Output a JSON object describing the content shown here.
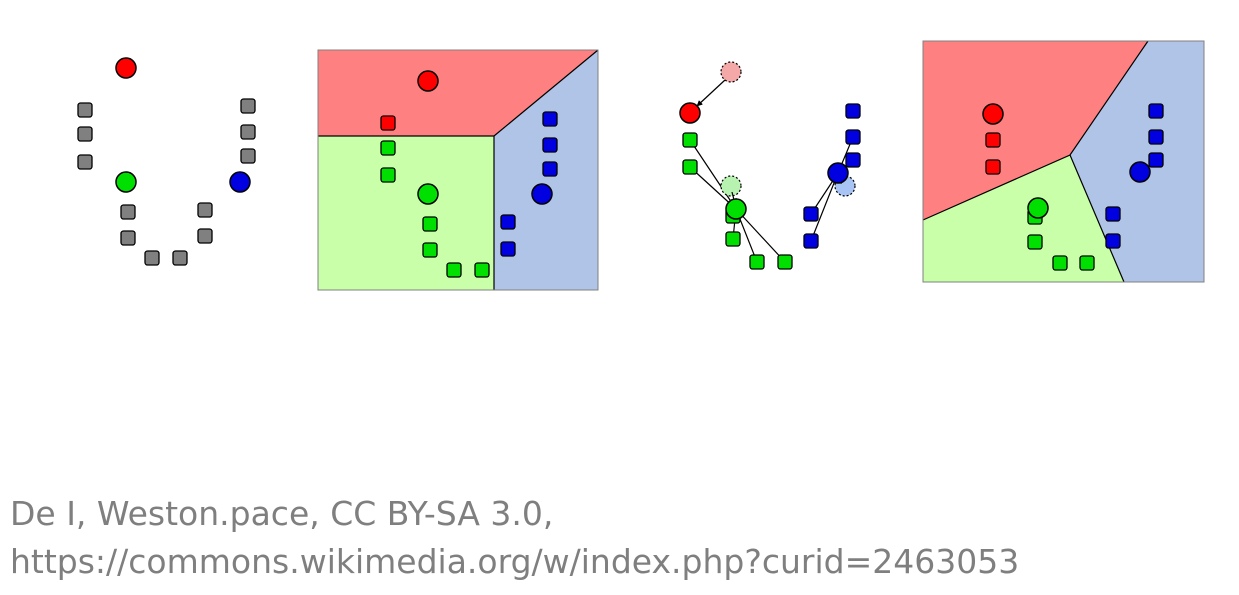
{
  "caption": {
    "line1": "De I, Weston.pace, CC BY-SA 3.0,",
    "line2": "https://commons.wikimedia.org/w/index.php?curid=2463053"
  },
  "colors": {
    "red": "#ff0000",
    "green": "#00e000",
    "blue": "#0000e0",
    "gray": "#808080",
    "region_red": "#ff8080",
    "region_green": "#c8ffa8",
    "region_blue": "#afc4e6",
    "ghost_red": "#f4a8a8",
    "ghost_green": "#b8f2b0",
    "ghost_blue": "#a8c4f4"
  },
  "panels": [
    {
      "step": 1,
      "description": "initial-means"
    },
    {
      "step": 2,
      "description": "assignment"
    },
    {
      "step": 3,
      "description": "update-means"
    },
    {
      "step": 4,
      "description": "reassignment"
    }
  ]
}
